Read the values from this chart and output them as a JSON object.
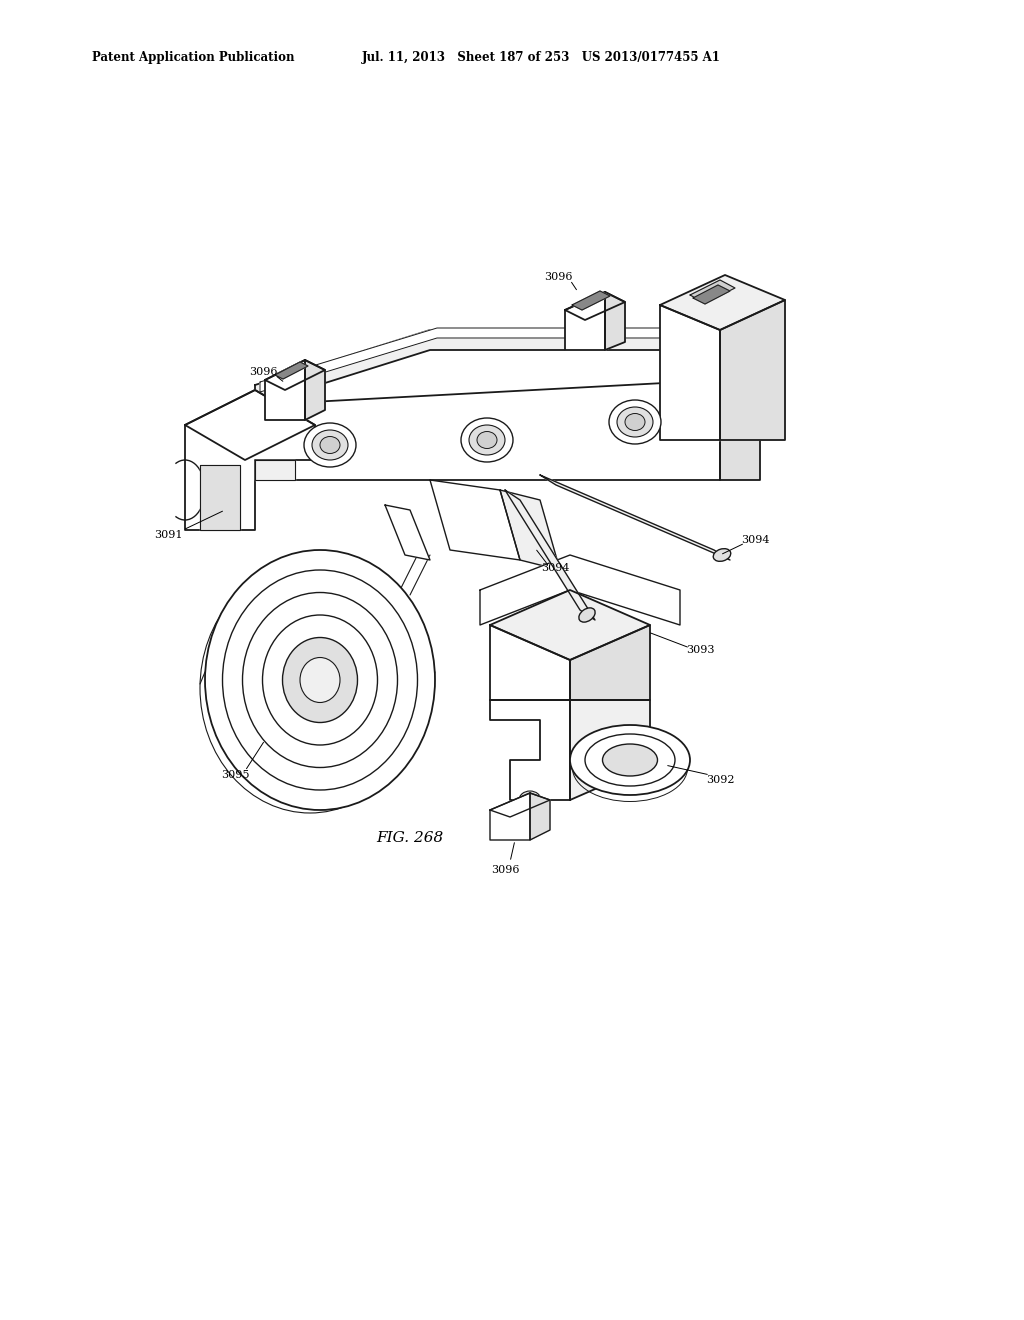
{
  "bg_color": "#ffffff",
  "header_left": "Patent Application Publication",
  "header_mid": "Jul. 11, 2013   Sheet 187 of 253   US 2013/0177455 A1",
  "fig_label": "FIG. 268",
  "label_fontsize": 8,
  "header_fontsize": 8.5,
  "fig_label_fontsize": 11,
  "line_color": "#1a1a1a",
  "fill_color": "#ffffff",
  "shade1": "#f0f0f0",
  "shade2": "#e0e0e0",
  "shade3": "#d0d0d0"
}
